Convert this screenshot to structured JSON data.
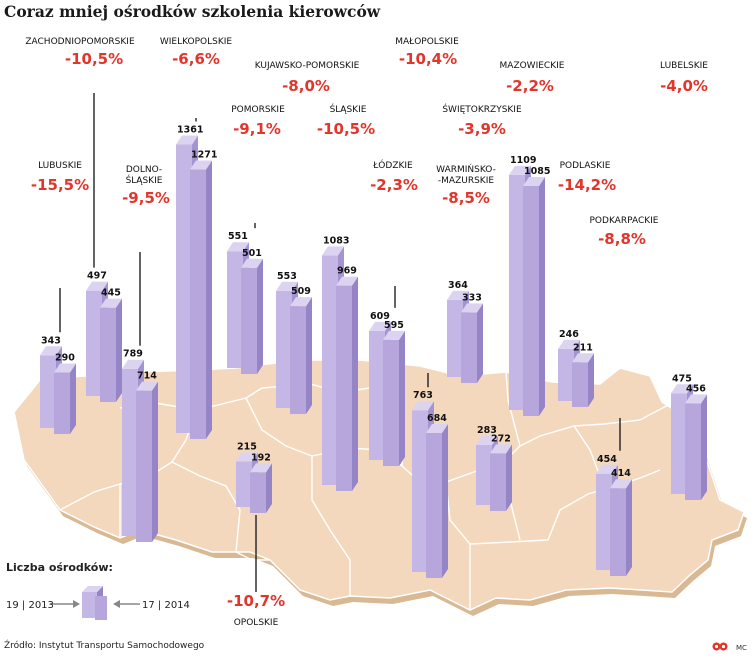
{
  "title": "Coraz mniej ośrodków szkolenia kierowców",
  "source": "Źródło: Instytut Transportu Samochodowego",
  "author": "MC",
  "legend": {
    "title": "Liczba ośrodków:",
    "left": "19 | 2013",
    "right": "17 | 2014"
  },
  "colors": {
    "change": "#e2352b",
    "bar_front": "#b6a6dc",
    "bar_side": "#9685c6",
    "bar_top": "#dcd3f1",
    "map": "#f3d8bd"
  },
  "chart_data": {
    "type": "bar",
    "title": "Coraz mniej ośrodków szkolenia kierowców",
    "ylabel": "Liczba ośrodków",
    "series": [
      {
        "name": "2013"
      },
      {
        "name": "2014"
      }
    ],
    "regions": [
      {
        "name": "ZACHODNIOPOMORSKIE",
        "change": "-10,5%",
        "v2013": 497,
        "v2014": 445
      },
      {
        "name": "WIELKOPOLSKIE",
        "change": "-6,6%",
        "v2013": 1361,
        "v2014": 1271
      },
      {
        "name": "KUJAWSKO-POMORSKIE",
        "change": "-8,0%",
        "v2013": 553,
        "v2014": 509
      },
      {
        "name": "MAŁOPOLSKIE",
        "change": "-10,4%",
        "v2013": 763,
        "v2014": 684
      },
      {
        "name": "MAZOWIECKIE",
        "change": "-2,2%",
        "v2013": 1109,
        "v2014": 1085
      },
      {
        "name": "LUBELSKIE",
        "change": "-4,0%",
        "v2013": 475,
        "v2014": 456
      },
      {
        "name": "POMORSKIE",
        "change": "-9,1%",
        "v2013": 551,
        "v2014": 501
      },
      {
        "name": "ŚLĄSKIE",
        "change": "-10,5%",
        "v2013": 1083,
        "v2014": 969
      },
      {
        "name": "ŚWIĘTOKRZYSKIE",
        "change": "-3,9%",
        "v2013": 283,
        "v2014": 272
      },
      {
        "name": "LUBUSKIE",
        "change": "-15,5%",
        "v2013": 343,
        "v2014": 290
      },
      {
        "name": "DOLNO-ŚLĄSKIE",
        "change": "-9,5%",
        "v2013": 789,
        "v2014": 714
      },
      {
        "name": "ŁÓDZKIE",
        "change": "-2,3%",
        "v2013": 609,
        "v2014": 595
      },
      {
        "name": "WARMIŃSKO-MAZURSKIE",
        "change": "-8,5%",
        "v2013": 364,
        "v2014": 333
      },
      {
        "name": "PODLASKIE",
        "change": "-14,2%",
        "v2013": 246,
        "v2014": 211
      },
      {
        "name": "PODKARPACKIE",
        "change": "-8,8%",
        "v2013": 454,
        "v2014": 414
      },
      {
        "name": "OPOLSKIE",
        "change": "-10,7%",
        "v2013": 215,
        "v2014": 192
      }
    ]
  }
}
